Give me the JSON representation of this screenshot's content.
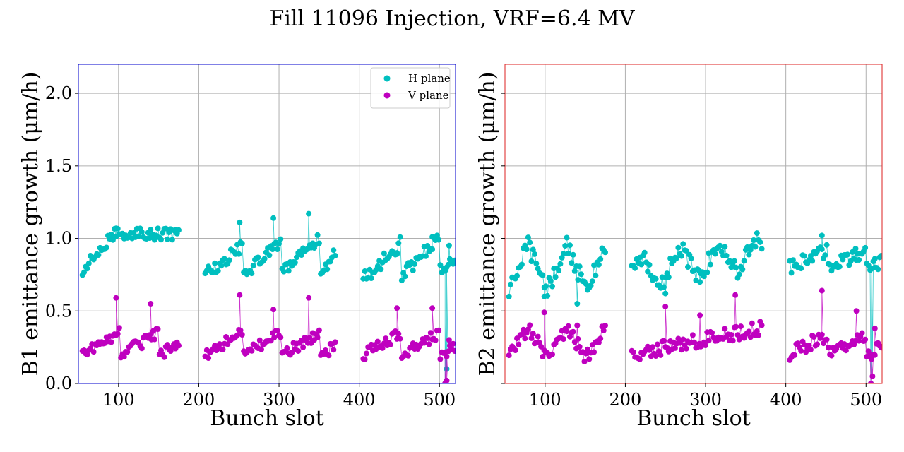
{
  "figure": {
    "title": "Fill 11096 Injection, VRF=6.4 MV"
  },
  "legend": {
    "h_label": "H plane",
    "v_label": "V plane",
    "placement": "upper right of left panel"
  },
  "colors": {
    "h_plane": "#00bfbf",
    "v_plane": "#bf00bf",
    "b1_frame": "#0000cc",
    "b2_frame": "#dd2222",
    "grid": "#b0b0b0"
  },
  "chart_data": [
    {
      "type": "scatter",
      "panel": "B1",
      "title": "",
      "xlabel": "Bunch slot",
      "ylabel": "B1 emittance growth (μm/h)",
      "xlim": [
        50,
        520
      ],
      "ylim": [
        0,
        2.2
      ],
      "xticks": [
        100,
        200,
        300,
        400,
        500
      ],
      "yticks": [
        0.0,
        0.5,
        1.0,
        1.5,
        2.0
      ],
      "ytick_labels": [
        "0.0",
        "0.5",
        "1.0",
        "1.5",
        "2.0"
      ],
      "grid": true,
      "series": [
        {
          "name": "H plane",
          "color": "#00bfbf",
          "x": [],
          "y": []
        },
        {
          "name": "V plane",
          "color": "#bf00bf",
          "x": [],
          "y": []
        }
      ]
    },
    {
      "type": "scatter",
      "panel": "B2",
      "title": "",
      "xlabel": "Bunch slot",
      "ylabel": "B2 emittance growth (μm/h)",
      "xlim": [
        50,
        520
      ],
      "ylim": [
        0,
        2.2
      ],
      "xticks": [
        100,
        200,
        300,
        400,
        500
      ],
      "yticks": [
        0.0,
        0.5,
        1.0,
        1.5,
        2.0
      ],
      "ytick_labels": [],
      "grid": true,
      "series": [
        {
          "name": "H plane",
          "color": "#00bfbf",
          "x": [],
          "y": []
        },
        {
          "name": "V plane",
          "color": "#bf00bf",
          "x": [],
          "y": []
        }
      ]
    }
  ]
}
